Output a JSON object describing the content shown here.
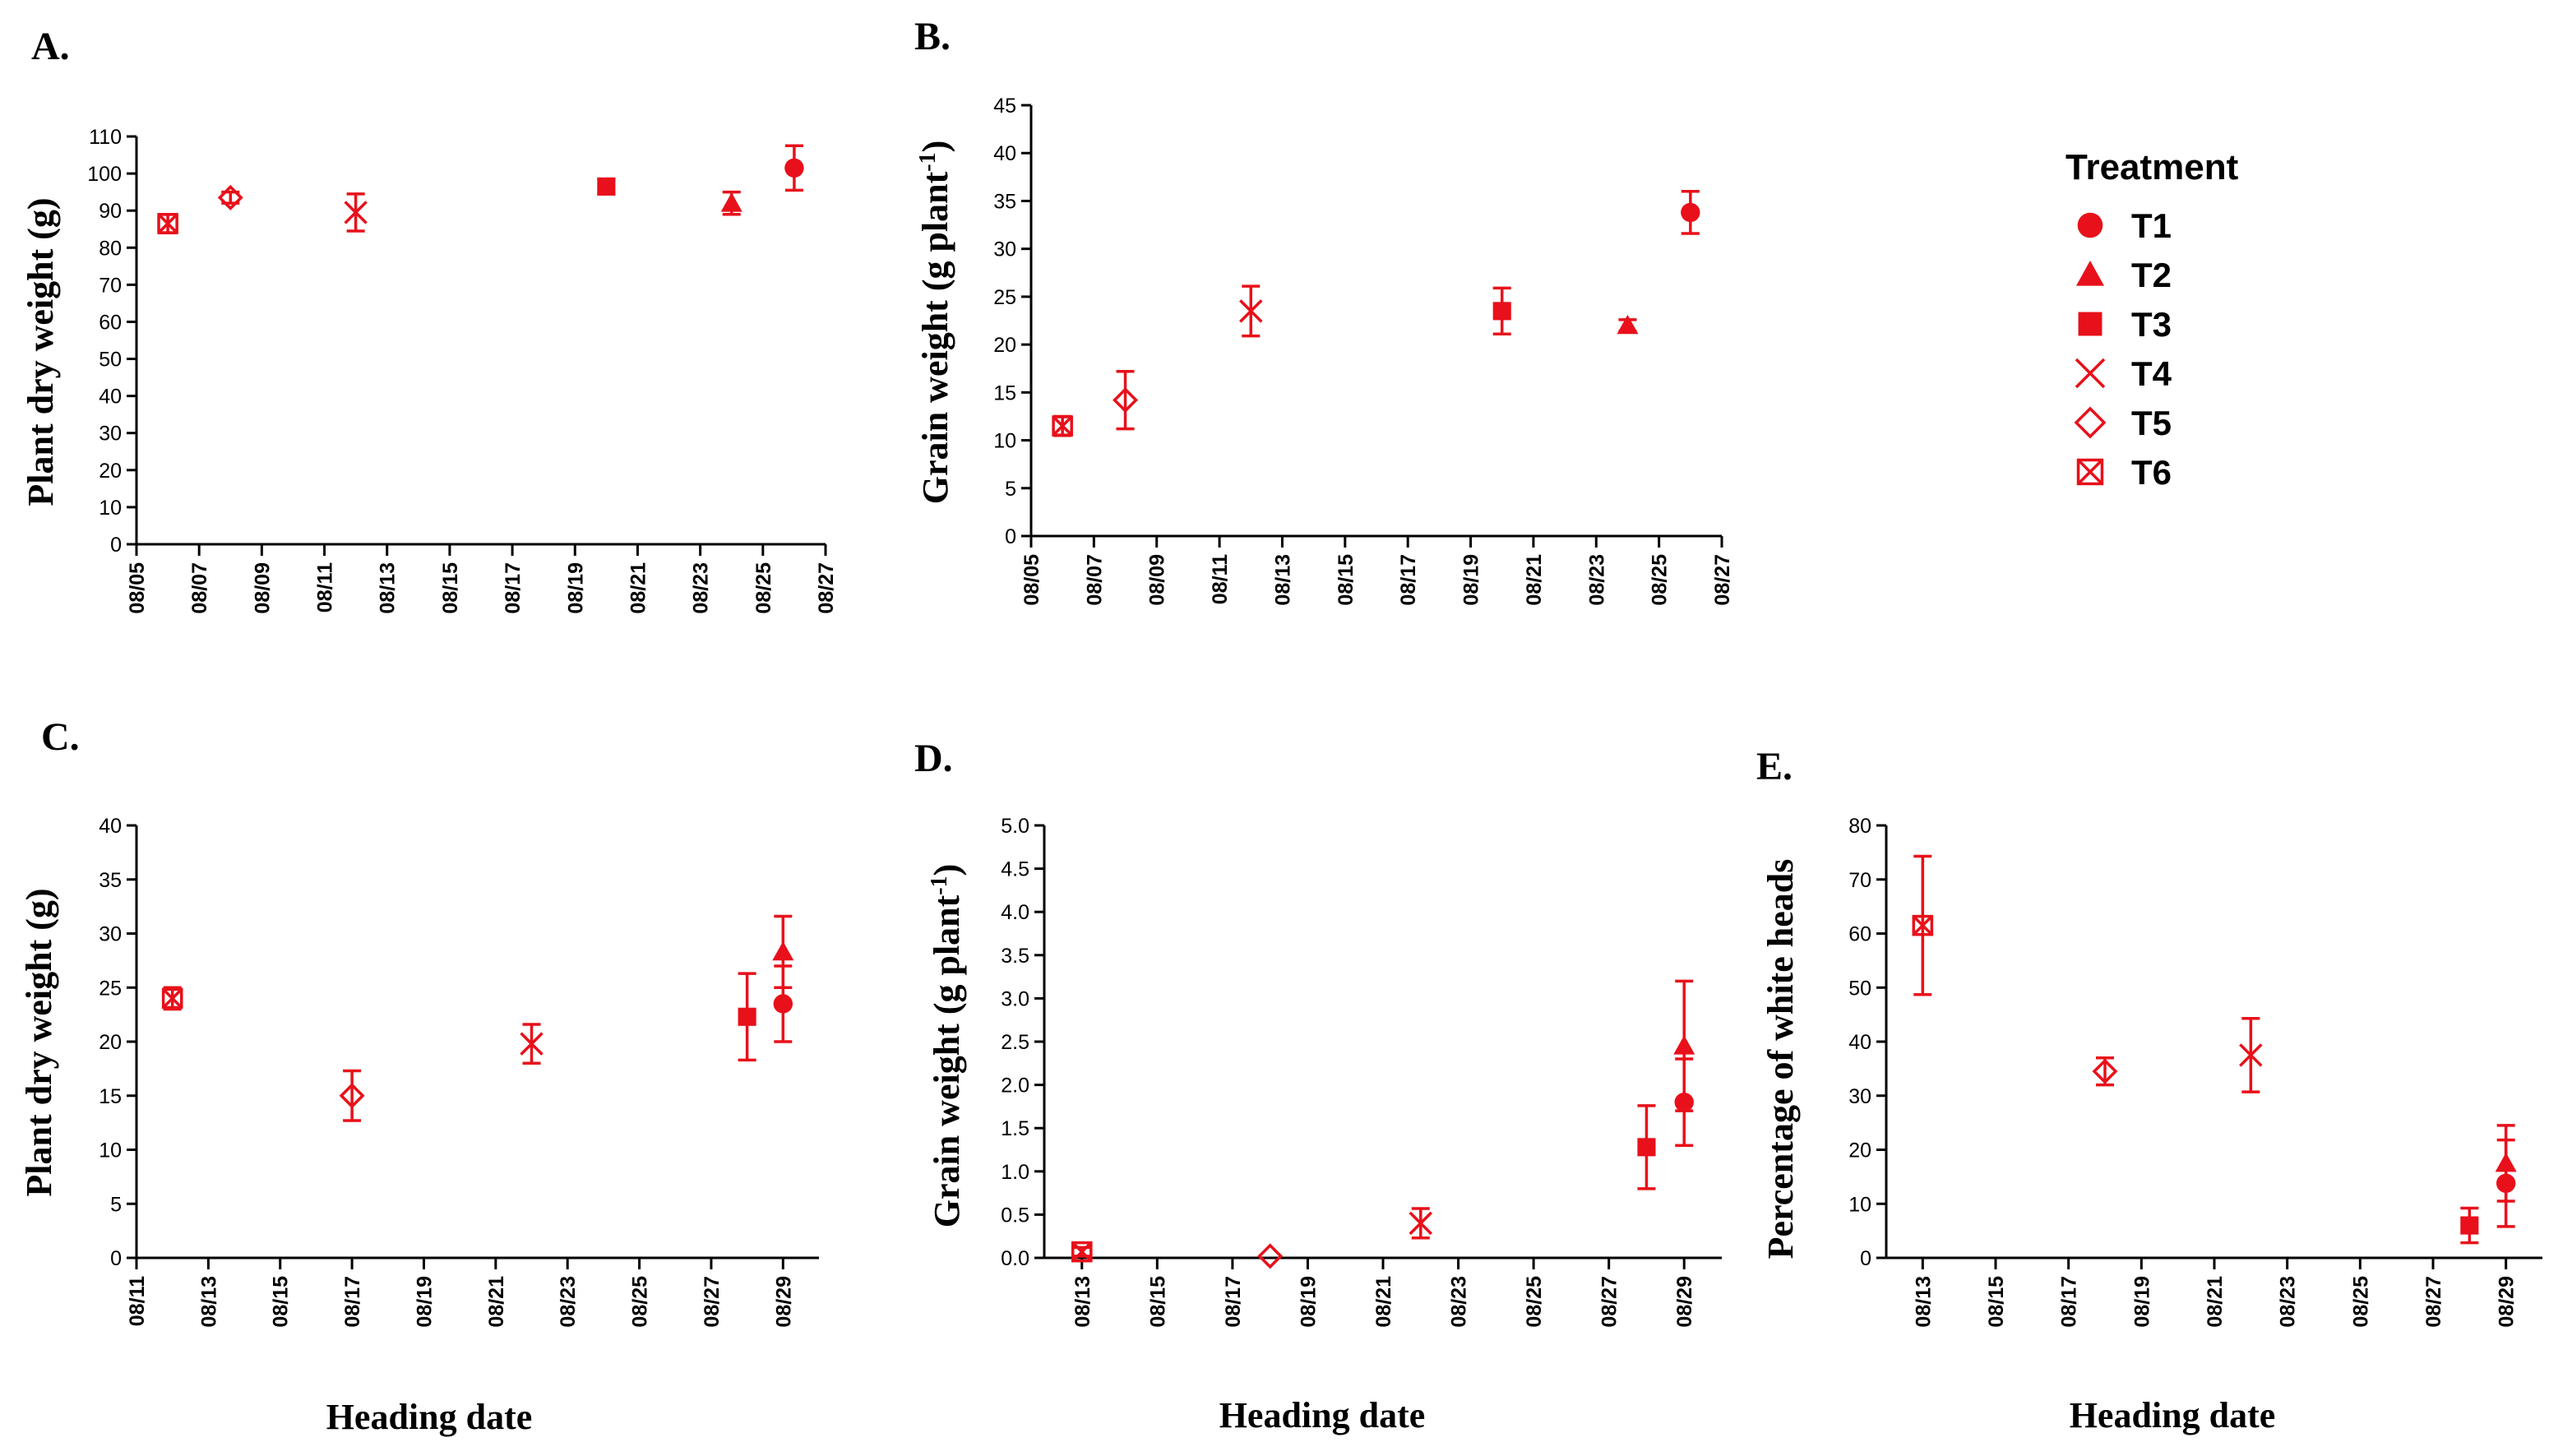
{
  "chart_data": [
    {
      "id": "A",
      "panel_label": "A.",
      "type": "scatter",
      "ylabel": "Plant dry weight (g)",
      "xlabel": "",
      "x_ticks": [
        "08/05",
        "08/07",
        "08/09",
        "08/11",
        "08/13",
        "08/15",
        "08/17",
        "08/19",
        "08/21",
        "08/23",
        "08/25",
        "08/27"
      ],
      "y_ticks": [
        0,
        10,
        20,
        30,
        40,
        50,
        60,
        70,
        80,
        90,
        100,
        110
      ],
      "xlim": [
        "08/05",
        "08/27"
      ],
      "ylim": [
        0,
        110
      ],
      "points": [
        {
          "treatment": "T6",
          "x": "08/06",
          "y": 86.5,
          "err": 2.5
        },
        {
          "treatment": "T5",
          "x": "08/08",
          "y": 93.5,
          "err": 1.5
        },
        {
          "treatment": "T4",
          "x": "08/12",
          "y": 89.5,
          "err": 5
        },
        {
          "treatment": "T3",
          "x": "08/20",
          "y": 96.5,
          "err": 2
        },
        {
          "treatment": "T2",
          "x": "08/24",
          "y": 92,
          "err": 3
        },
        {
          "treatment": "T1",
          "x": "08/26",
          "y": 101.5,
          "err": 6
        }
      ]
    },
    {
      "id": "B",
      "panel_label": "B.",
      "type": "scatter",
      "ylabel": "Grain weight (g plant",
      "ylabel_sup": "-1",
      "ylabel_end": ")",
      "xlabel": "",
      "x_ticks": [
        "08/05",
        "08/07",
        "08/09",
        "08/11",
        "08/13",
        "08/15",
        "08/17",
        "08/19",
        "08/21",
        "08/23",
        "08/25",
        "08/27"
      ],
      "y_ticks": [
        0,
        5,
        10,
        15,
        20,
        25,
        30,
        35,
        40,
        45
      ],
      "xlim": [
        "08/05",
        "08/27"
      ],
      "ylim": [
        0,
        45
      ],
      "points": [
        {
          "treatment": "T6",
          "x": "08/06",
          "y": 11.5,
          "err": 1
        },
        {
          "treatment": "T5",
          "x": "08/08",
          "y": 14.2,
          "err": 3
        },
        {
          "treatment": "T4",
          "x": "08/12",
          "y": 23.5,
          "err": 2.6
        },
        {
          "treatment": "T3",
          "x": "08/20",
          "y": 23.5,
          "err": 2.4
        },
        {
          "treatment": "T2",
          "x": "08/24",
          "y": 22,
          "err": 0.6
        },
        {
          "treatment": "T1",
          "x": "08/26",
          "y": 33.8,
          "err": 2.2
        }
      ]
    },
    {
      "id": "C",
      "panel_label": "C.",
      "type": "scatter",
      "ylabel": "Plant dry weight (g)",
      "xlabel": "Heading date",
      "x_ticks": [
        "08/11",
        "08/13",
        "08/15",
        "08/17",
        "08/19",
        "08/21",
        "08/23",
        "08/25",
        "08/27",
        "08/29"
      ],
      "y_ticks": [
        0,
        5,
        10,
        15,
        20,
        25,
        30,
        35,
        40
      ],
      "xlim": [
        "08/11",
        "08/30"
      ],
      "ylim": [
        0,
        40
      ],
      "points": [
        {
          "treatment": "T6",
          "x": "08/12",
          "y": 24,
          "err": 1
        },
        {
          "treatment": "T5",
          "x": "08/17",
          "y": 15,
          "err": 2.3
        },
        {
          "treatment": "T4",
          "x": "08/22",
          "y": 19.8,
          "err": 1.8
        },
        {
          "treatment": "T3",
          "x": "08/28",
          "y": 22.3,
          "err": 4
        },
        {
          "treatment": "T2",
          "x": "08/29",
          "y": 28.3,
          "err": 3.3
        },
        {
          "treatment": "T1",
          "x": "08/29",
          "y": 23.5,
          "err": 3.5
        }
      ]
    },
    {
      "id": "D",
      "panel_label": "D.",
      "type": "scatter",
      "ylabel": "Grain weight (g plant",
      "ylabel_sup": "-1",
      "ylabel_end": ")",
      "xlabel": "Heading date",
      "x_ticks": [
        "08/13",
        "08/15",
        "08/17",
        "08/19",
        "08/21",
        "08/23",
        "08/25",
        "08/27",
        "08/29"
      ],
      "y_ticks": [
        "0.0",
        "0.5",
        "1.0",
        "1.5",
        "2.0",
        "2.5",
        "3.0",
        "3.5",
        "4.0",
        "4.5",
        "5.0"
      ],
      "xlim": [
        "08/12",
        "08/30"
      ],
      "ylim": [
        0,
        5
      ],
      "points": [
        {
          "treatment": "T6",
          "x": "08/13",
          "y": 0.07,
          "err": 0.05
        },
        {
          "treatment": "T5",
          "x": "08/18",
          "y": 0.02,
          "err": 0
        },
        {
          "treatment": "T4",
          "x": "08/22",
          "y": 0.4,
          "err": 0.17
        },
        {
          "treatment": "T3",
          "x": "08/28",
          "y": 1.28,
          "err": 0.48
        },
        {
          "treatment": "T2",
          "x": "08/29",
          "y": 2.45,
          "err": 0.75
        },
        {
          "treatment": "T1",
          "x": "08/29",
          "y": 1.8,
          "err": 0.5
        }
      ]
    },
    {
      "id": "E",
      "panel_label": "E.",
      "type": "scatter",
      "ylabel": "Percentage of white heads",
      "xlabel": "Heading date",
      "x_ticks": [
        "08/13",
        "08/15",
        "08/17",
        "08/19",
        "08/21",
        "08/23",
        "08/25",
        "08/27",
        "08/29"
      ],
      "y_ticks": [
        0,
        10,
        20,
        30,
        40,
        50,
        60,
        70,
        80
      ],
      "xlim": [
        "08/12",
        "08/30"
      ],
      "ylim": [
        0,
        80
      ],
      "points": [
        {
          "treatment": "T6",
          "x": "08/13",
          "y": 61.5,
          "err": 12.8
        },
        {
          "treatment": "T5",
          "x": "08/18",
          "y": 34.5,
          "err": 2.5
        },
        {
          "treatment": "T4",
          "x": "08/22",
          "y": 37.5,
          "err": 6.8
        },
        {
          "treatment": "T3",
          "x": "08/28",
          "y": 6,
          "err": 3.2
        },
        {
          "treatment": "T2",
          "x": "08/29",
          "y": 17.5,
          "err": 7
        },
        {
          "treatment": "T1",
          "x": "08/29",
          "y": 13.8,
          "err": 8
        }
      ]
    }
  ],
  "legend": {
    "title": "Treatment",
    "placement": "right",
    "items": [
      {
        "label": "T1",
        "marker": "filled-circle"
      },
      {
        "label": "T2",
        "marker": "filled-triangle"
      },
      {
        "label": "T3",
        "marker": "filled-square"
      },
      {
        "label": "T4",
        "marker": "x-cross"
      },
      {
        "label": "T5",
        "marker": "open-diamond"
      },
      {
        "label": "T6",
        "marker": "boxed-x"
      }
    ]
  },
  "colors": {
    "series": "#e8101a",
    "axis": "#000000"
  }
}
